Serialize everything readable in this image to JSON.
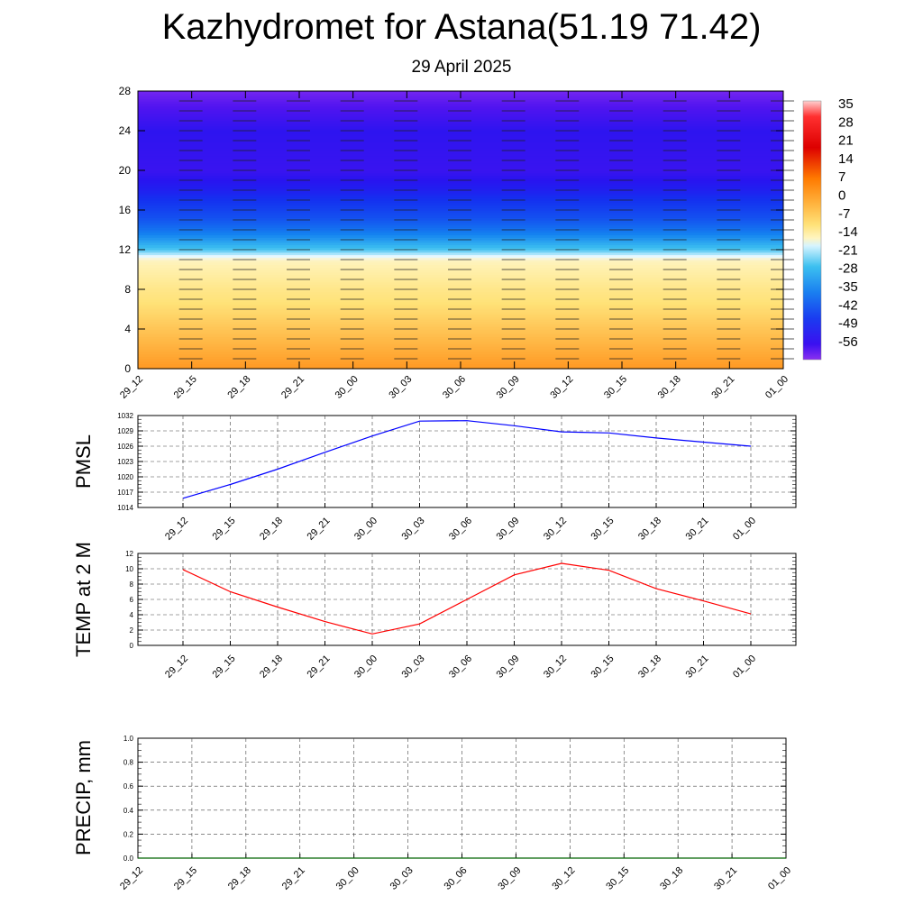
{
  "title": "Kazhydromet for Astana(51.19 71.42)",
  "subtitle": "29 April 2025",
  "time_labels": [
    "29_12",
    "29_15",
    "29_18",
    "29_21",
    "30_00",
    "30_03",
    "30_06",
    "30_09",
    "30_12",
    "30_15",
    "30_18",
    "30_21",
    "01_00"
  ],
  "chart_data": [
    {
      "type": "heatmap",
      "name": "cross-section",
      "ylim": [
        0,
        28
      ],
      "y_ticks": [
        0,
        4,
        8,
        12,
        16,
        20,
        24,
        28
      ],
      "x_ticks": [
        "29_12",
        "29_15",
        "29_18",
        "29_21",
        "30_00",
        "30_03",
        "30_06",
        "30_09",
        "30_12",
        "30_15",
        "30_18",
        "30_21",
        "01_00"
      ],
      "colorbar": {
        "labels": [
          "35",
          "28",
          "21",
          "14",
          "7",
          "0",
          "-7",
          "-14",
          "-21",
          "-28",
          "-35",
          "-42",
          "-49",
          "-56"
        ],
        "range": [
          -63,
          42
        ]
      },
      "profile_levels": [
        0,
        4,
        8,
        11,
        12,
        14,
        16,
        18,
        20,
        24,
        28
      ],
      "profile_values": [
        10,
        4,
        -2,
        -8,
        -20,
        -30,
        -38,
        -46,
        -52,
        -50,
        -60
      ],
      "wind_barbs": {
        "columns": [
          "29_15",
          "29_18",
          "29_21",
          "30_00",
          "30_03",
          "30_06",
          "30_09",
          "30_12",
          "30_15",
          "30_18",
          "30_21",
          "01_00"
        ],
        "levels": [
          1,
          2,
          3,
          4,
          5,
          6,
          7,
          8,
          9,
          10,
          11,
          12,
          13,
          14,
          15,
          16,
          17,
          18,
          19,
          20,
          21,
          22,
          23,
          24,
          25,
          26,
          27
        ]
      }
    },
    {
      "type": "line",
      "name": "pmsl",
      "ylabel": "PMSL",
      "ylim": [
        1014,
        1032
      ],
      "y_ticks": [
        1014,
        1017,
        1020,
        1023,
        1026,
        1029,
        1032
      ],
      "x": [
        "29_12",
        "29_15",
        "29_18",
        "29_21",
        "30_00",
        "30_03",
        "30_06",
        "30_09",
        "30_12",
        "30_15",
        "30_18",
        "30_21",
        "01_00"
      ],
      "values": [
        1015.8,
        1018.5,
        1021.5,
        1024.8,
        1028.0,
        1030.9,
        1031.0,
        1030.0,
        1028.8,
        1028.6,
        1027.6,
        1026.8,
        1026.0
      ],
      "color": "#0000ff"
    },
    {
      "type": "line",
      "name": "temp2m",
      "ylabel": "TEMP at 2 M",
      "ylim": [
        0,
        12
      ],
      "y_ticks": [
        0,
        2,
        4,
        6,
        8,
        10,
        12
      ],
      "x": [
        "29_12",
        "29_15",
        "29_18",
        "29_21",
        "30_00",
        "30_03",
        "30_06",
        "30_09",
        "30_12",
        "30_15",
        "30_18",
        "30_21",
        "01_00"
      ],
      "values": [
        9.9,
        7.0,
        5.0,
        3.1,
        1.5,
        2.8,
        6.0,
        9.2,
        10.7,
        9.8,
        7.4,
        5.8,
        4.1
      ],
      "color": "#ff0000"
    },
    {
      "type": "line",
      "name": "precip",
      "ylabel": "PRECIP, mm",
      "ylim": [
        0,
        1
      ],
      "y_ticks": [
        "0.0",
        "0.2",
        "0.4",
        "0.6",
        "0.8",
        "1.0"
      ],
      "x": [
        "29_12",
        "29_15",
        "29_18",
        "29_21",
        "30_00",
        "30_03",
        "30_06",
        "30_09",
        "30_12",
        "30_15",
        "30_18",
        "30_21",
        "01_00"
      ],
      "values": [
        0,
        0,
        0,
        0,
        0,
        0,
        0,
        0,
        0,
        0,
        0,
        0,
        0
      ],
      "color": "#006400"
    }
  ]
}
